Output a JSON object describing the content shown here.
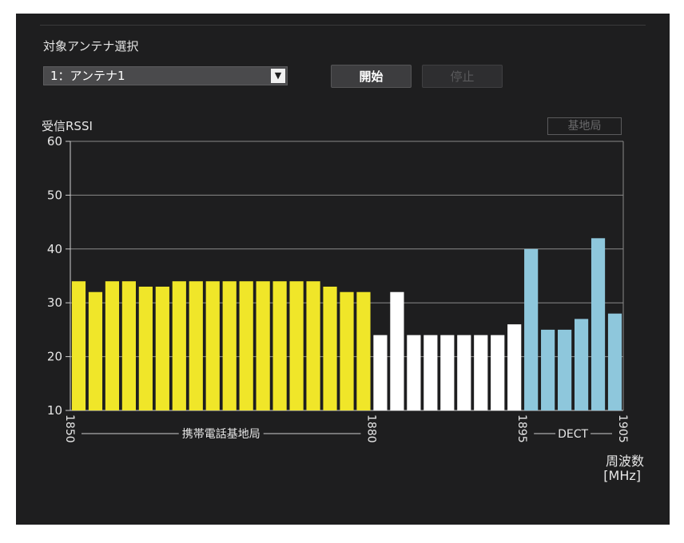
{
  "panel": {
    "antenna_label": "対象アンテナ選択",
    "antenna_selected": "1：アンテナ1",
    "start_label": "開始",
    "stop_label": "停止",
    "legend_label": "基地局"
  },
  "colors": {
    "background": "#1e1e1f",
    "mobile_base_station": "#f0e629",
    "other": "#ffffff",
    "dect": "#8ec7dc",
    "grid": "#8a8a8a"
  },
  "chart_data": {
    "type": "bar",
    "ylabel": "受信RSSI",
    "xlabel": "周波数",
    "xunit": "[MHz]",
    "ylim": [
      10,
      60
    ],
    "yticks": [
      10,
      20,
      30,
      40,
      50,
      60
    ],
    "xlim": [
      1850,
      1905
    ],
    "xticks": [
      1850,
      1880,
      1895,
      1905
    ],
    "grid": true,
    "band_labels": [
      {
        "text": "携帯電話基地局",
        "from": 1850,
        "to": 1880
      },
      {
        "text": "DECT",
        "from": 1895,
        "to": 1905
      }
    ],
    "series": [
      {
        "name": "携帯電話基地局",
        "color": "#f0e629",
        "values": [
          34,
          32,
          34,
          34,
          33,
          33,
          34,
          34,
          34,
          34,
          34,
          34,
          34,
          34,
          34,
          33,
          32,
          32
        ]
      },
      {
        "color": "#ffffff",
        "values": [
          24,
          32,
          24,
          24,
          24,
          24,
          24,
          24,
          26
        ]
      },
      {
        "name": "DECT",
        "color": "#8ec7dc",
        "values": [
          40,
          25,
          25,
          27,
          42,
          28
        ]
      }
    ]
  }
}
